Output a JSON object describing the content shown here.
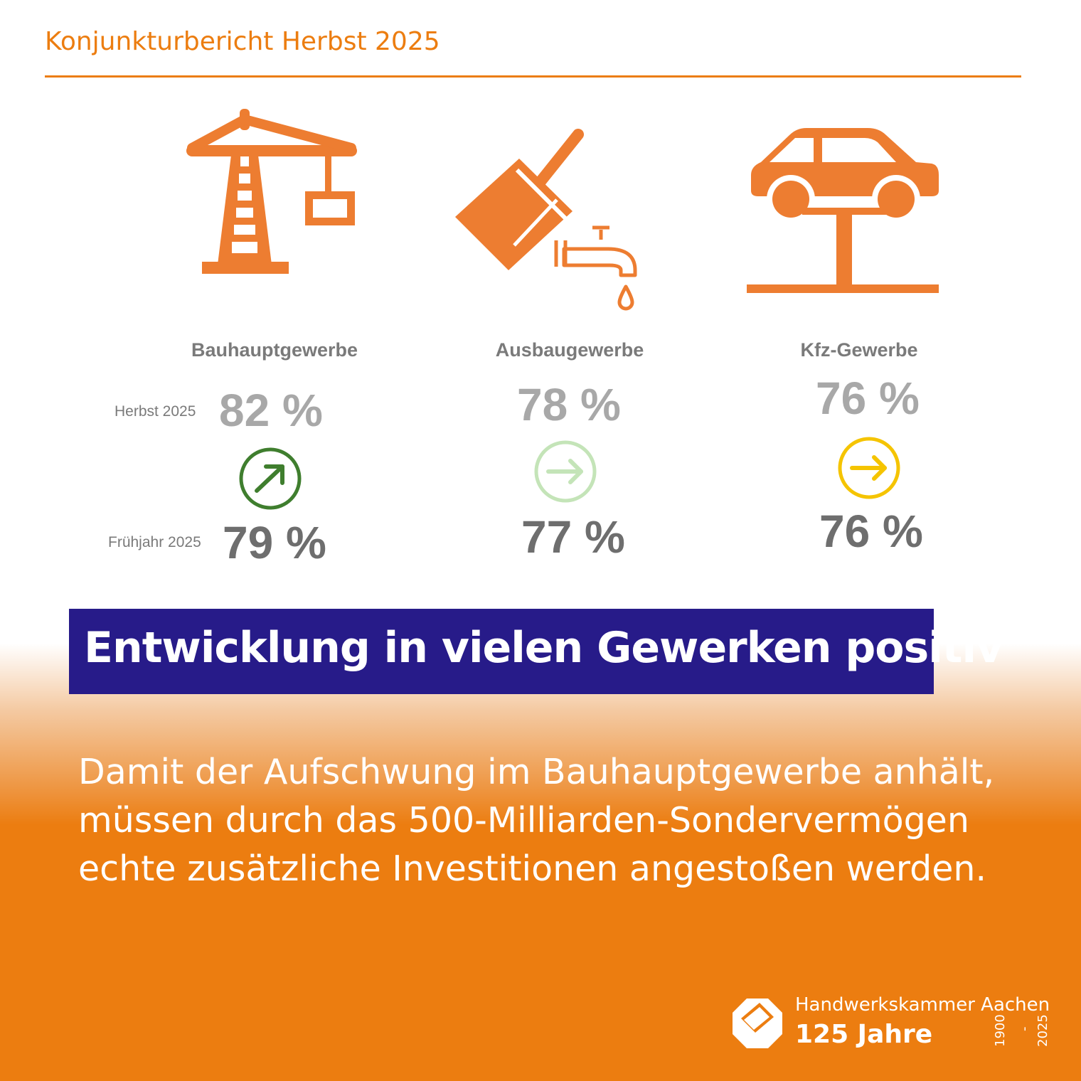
{
  "header": {
    "title": "Konjunkturbericht Herbst 2025"
  },
  "legend": {
    "autumn": "Herbst 2025",
    "spring": "Frühjahr 2025"
  },
  "categories": [
    {
      "name": "Bauhauptgewerbe",
      "autumn": "82 %",
      "spring": "79 %",
      "trend": "up",
      "trend_color": "#3f7e2e"
    },
    {
      "name": "Ausbaugewerbe",
      "autumn": "78 %",
      "spring": "77 %",
      "trend": "flat",
      "trend_color": "#c4e4b8"
    },
    {
      "name": "Kfz-Gewerbe",
      "autumn": "76 %",
      "spring": "76 %",
      "trend": "flat",
      "trend_color": "#f5c400"
    }
  ],
  "colors": {
    "accent": "#ec7d10",
    "banner": "#271b89",
    "autumn_value": "#a8a8a8",
    "spring_value": "#6e6e6e"
  },
  "banner": {
    "headline": "Entwicklung in vielen Gewerken positiv"
  },
  "body": {
    "text": "Damit der Aufschwung im Bauhauptgewerbe anhält, müssen durch das 500-Milliarden-Sondervermögen echte zusätzliche Investitionen angestoßen werden."
  },
  "footer": {
    "organization": "Handwerkskammer Aachen",
    "anniversary": "125 Jahre",
    "year_start": "1900",
    "year_dash": "-",
    "year_end": "2025"
  }
}
